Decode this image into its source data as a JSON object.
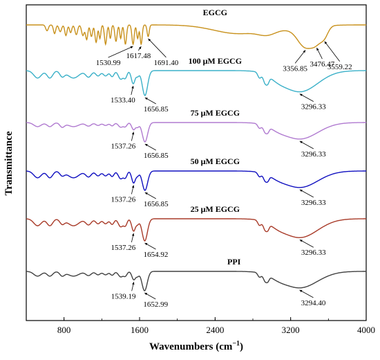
{
  "chart_data": {
    "type": "line",
    "xlabel": "Wavenumbers (cm",
    "xlabel_sup": "−1",
    "xlabel_close": ")",
    "ylabel": "Transmittance",
    "xlim": [
      400,
      4000
    ],
    "xticks": [
      800,
      1600,
      2400,
      3200,
      4000
    ],
    "grid": false,
    "series": [
      {
        "name": "EGCG",
        "color": "#c8911c",
        "peaks": [
          {
            "label": "1530.99",
            "x": 1531
          },
          {
            "label": "1617.48",
            "x": 1617
          },
          {
            "label": "1691.40",
            "x": 1691
          },
          {
            "label": "3356.85",
            "x": 3357
          },
          {
            "label": "3476.47",
            "x": 3476
          },
          {
            "label": "3559.22",
            "x": 3559
          }
        ]
      },
      {
        "name": "100 μM EGCG",
        "color": "#3ab0c8",
        "peaks": [
          {
            "label": "1533.40",
            "x": 1533
          },
          {
            "label": "1656.85",
            "x": 1657
          },
          {
            "label": "3296.33",
            "x": 3296
          }
        ]
      },
      {
        "name": "75 μM EGCG",
        "color": "#b07ad0",
        "peaks": [
          {
            "label": "1537.26",
            "x": 1537
          },
          {
            "label": "1656.85",
            "x": 1657
          },
          {
            "label": "3296.33",
            "x": 3296
          }
        ]
      },
      {
        "name": "50 μM EGCG",
        "color": "#1010c0",
        "peaks": [
          {
            "label": "1537.26",
            "x": 1537
          },
          {
            "label": "1656.85",
            "x": 1657
          },
          {
            "label": "3296.33",
            "x": 3296
          }
        ]
      },
      {
        "name": "25 μM EGCG",
        "color": "#a83a28",
        "peaks": [
          {
            "label": "1537.26",
            "x": 1537
          },
          {
            "label": "1654.92",
            "x": 1655
          },
          {
            "label": "3296.33",
            "x": 3296
          }
        ]
      },
      {
        "name": "PPI",
        "color": "#404040",
        "peaks": [
          {
            "label": "1539.19",
            "x": 1539
          },
          {
            "label": "1652.99",
            "x": 1653
          },
          {
            "label": "3294.40",
            "x": 3294
          }
        ]
      }
    ]
  }
}
